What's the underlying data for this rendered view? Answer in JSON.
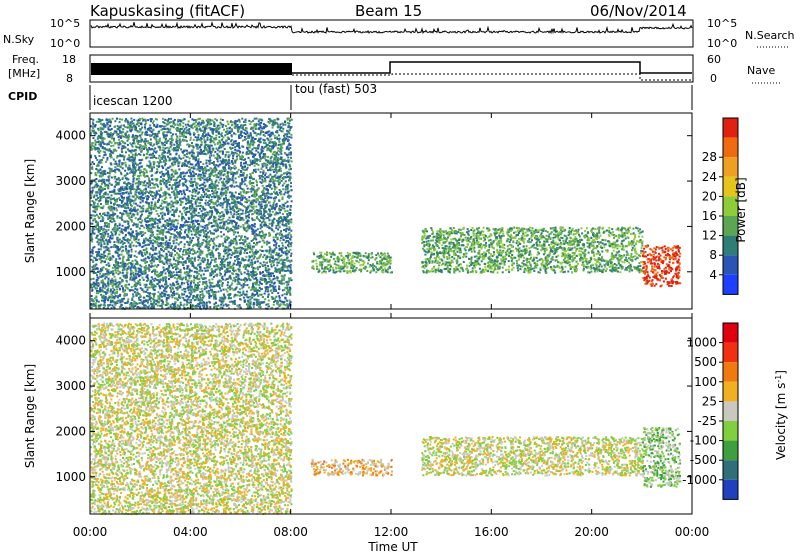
{
  "header": {
    "station": "Kapuskasing (fitACF)",
    "beam": "Beam 15",
    "date": "06/Nov/2014"
  },
  "status_panels": {
    "nsky_label": "N.Sky",
    "nsky_ticks": [
      "10^5",
      "10^0"
    ],
    "nsearch_label": "N.Search",
    "nsearch_ticks": [
      "10^5",
      "10^0"
    ],
    "freq_label_1": "Freq.",
    "freq_label_2": "[MHz]",
    "freq_ticks": [
      "18",
      "8"
    ],
    "nave_label": "Nave",
    "nave_ticks": [
      "60",
      "0"
    ],
    "cpid_label": "CPID",
    "cpid_segments": [
      {
        "label": "icescan 1200",
        "start_h": 0,
        "end_h": 8
      },
      {
        "label": "tou (fast) 503",
        "start_h": 8,
        "end_h": 24
      }
    ]
  },
  "chart_data": [
    {
      "type": "heatmap",
      "name": "power-panel",
      "xlabel": "",
      "ylabel": "Slant Range [km]",
      "xlim": [
        0,
        24
      ],
      "ylim": [
        180,
        4500
      ],
      "yticks": [
        1000,
        2000,
        3000,
        4000
      ],
      "colorbar_label": "Power [dB]",
      "colorbar_ticks": [
        "4",
        "8",
        "12",
        "16",
        "20",
        "24",
        "28"
      ],
      "colorbar_colors": [
        "#1f3fff",
        "#2a55b5",
        "#2e7e76",
        "#5aa653",
        "#8fcc3a",
        "#e5c51c",
        "#f0a020",
        "#f06a10",
        "#e02010"
      ],
      "scatter_regions": [
        {
          "t0": 0.0,
          "t1": 8.0,
          "r0": 200,
          "r1": 4400,
          "color_index": 2
        },
        {
          "t0": 8.8,
          "t1": 12.0,
          "r0": 1000,
          "r1": 1450,
          "color_index": 3
        },
        {
          "t0": 13.2,
          "t1": 22.0,
          "r0": 1000,
          "r1": 2000,
          "color_index": 3
        },
        {
          "t0": 22.0,
          "t1": 23.5,
          "r0": 700,
          "r1": 1600,
          "color_index": 8
        }
      ]
    },
    {
      "type": "heatmap",
      "name": "velocity-panel",
      "xlabel": "Time UT",
      "ylabel": "Slant Range [km]",
      "xlim": [
        0,
        24
      ],
      "ylim": [
        180,
        4500
      ],
      "xticks": [
        "00:00",
        "04:00",
        "08:00",
        "12:00",
        "16:00",
        "20:00",
        "00:00"
      ],
      "yticks": [
        1000,
        2000,
        3000,
        4000
      ],
      "colorbar_label": "Velocity [m s^-1]",
      "colorbar_ticks": [
        "1000",
        "500",
        "100",
        "25",
        "-25",
        "-100",
        "-500",
        "-1000"
      ],
      "colorbar_colors": [
        "#2040c0",
        "#2f6f7a",
        "#3f9f3f",
        "#7fcf3f",
        "#c8c8be",
        "#f0b020",
        "#f07a10",
        "#f03010",
        "#e00010"
      ],
      "scatter_regions": [
        {
          "t0": 0.0,
          "t1": 8.0,
          "r0": 200,
          "r1": 4400,
          "color_index": 4
        },
        {
          "t0": 8.8,
          "t1": 12.0,
          "r0": 1050,
          "r1": 1400,
          "color_index": 5
        },
        {
          "t0": 13.2,
          "t1": 22.0,
          "r0": 1050,
          "r1": 1900,
          "color_index": 4
        },
        {
          "t0": 22.0,
          "t1": 23.5,
          "r0": 800,
          "r1": 2100,
          "color_index": 3
        }
      ]
    }
  ]
}
